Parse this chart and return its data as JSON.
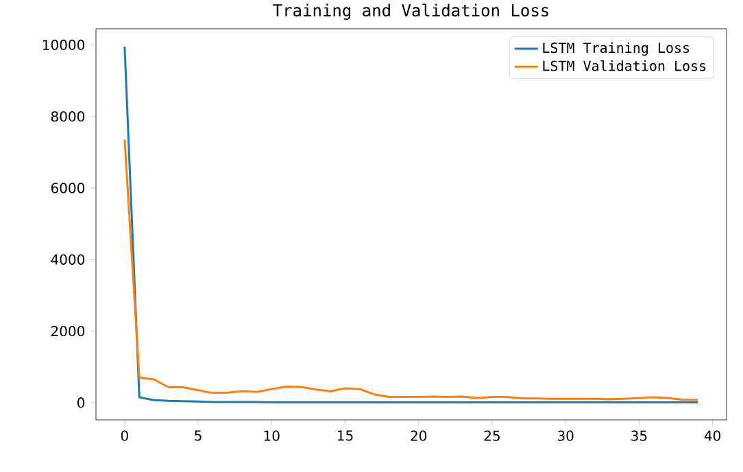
{
  "chart_data": {
    "type": "line",
    "title": "Training and Validation Loss",
    "x": [
      0,
      1,
      2,
      3,
      4,
      5,
      6,
      7,
      8,
      9,
      10,
      11,
      12,
      13,
      14,
      15,
      16,
      17,
      18,
      19,
      20,
      21,
      22,
      23,
      24,
      25,
      26,
      27,
      28,
      29,
      30,
      31,
      32,
      33,
      34,
      35,
      36,
      37,
      38,
      39
    ],
    "series": [
      {
        "name": "LSTM Training Loss",
        "color": "#1f77b4",
        "values": [
          9950,
          150,
          70,
          50,
          40,
          30,
          20,
          20,
          20,
          20,
          10,
          10,
          10,
          10,
          10,
          10,
          10,
          10,
          10,
          10,
          10,
          10,
          10,
          10,
          10,
          10,
          10,
          10,
          10,
          10,
          10,
          10,
          10,
          10,
          10,
          10,
          10,
          10,
          10,
          10
        ]
      },
      {
        "name": "LSTM Validation Loss",
        "color": "#ff7f0e",
        "values": [
          7350,
          700,
          650,
          430,
          430,
          350,
          270,
          280,
          320,
          300,
          380,
          450,
          440,
          370,
          320,
          400,
          380,
          230,
          160,
          160,
          160,
          170,
          160,
          170,
          130,
          160,
          160,
          120,
          120,
          110,
          110,
          110,
          110,
          100,
          110,
          130,
          150,
          130,
          80,
          80
        ]
      }
    ],
    "xlim": [
      -1.95,
      40.95
    ],
    "ylim": [
      -480,
      10450
    ],
    "xticks": [
      0,
      5,
      10,
      15,
      20,
      25,
      30,
      35,
      40
    ],
    "yticks": [
      0,
      2000,
      4000,
      6000,
      8000,
      10000
    ],
    "legend": "top right",
    "grid": false
  }
}
